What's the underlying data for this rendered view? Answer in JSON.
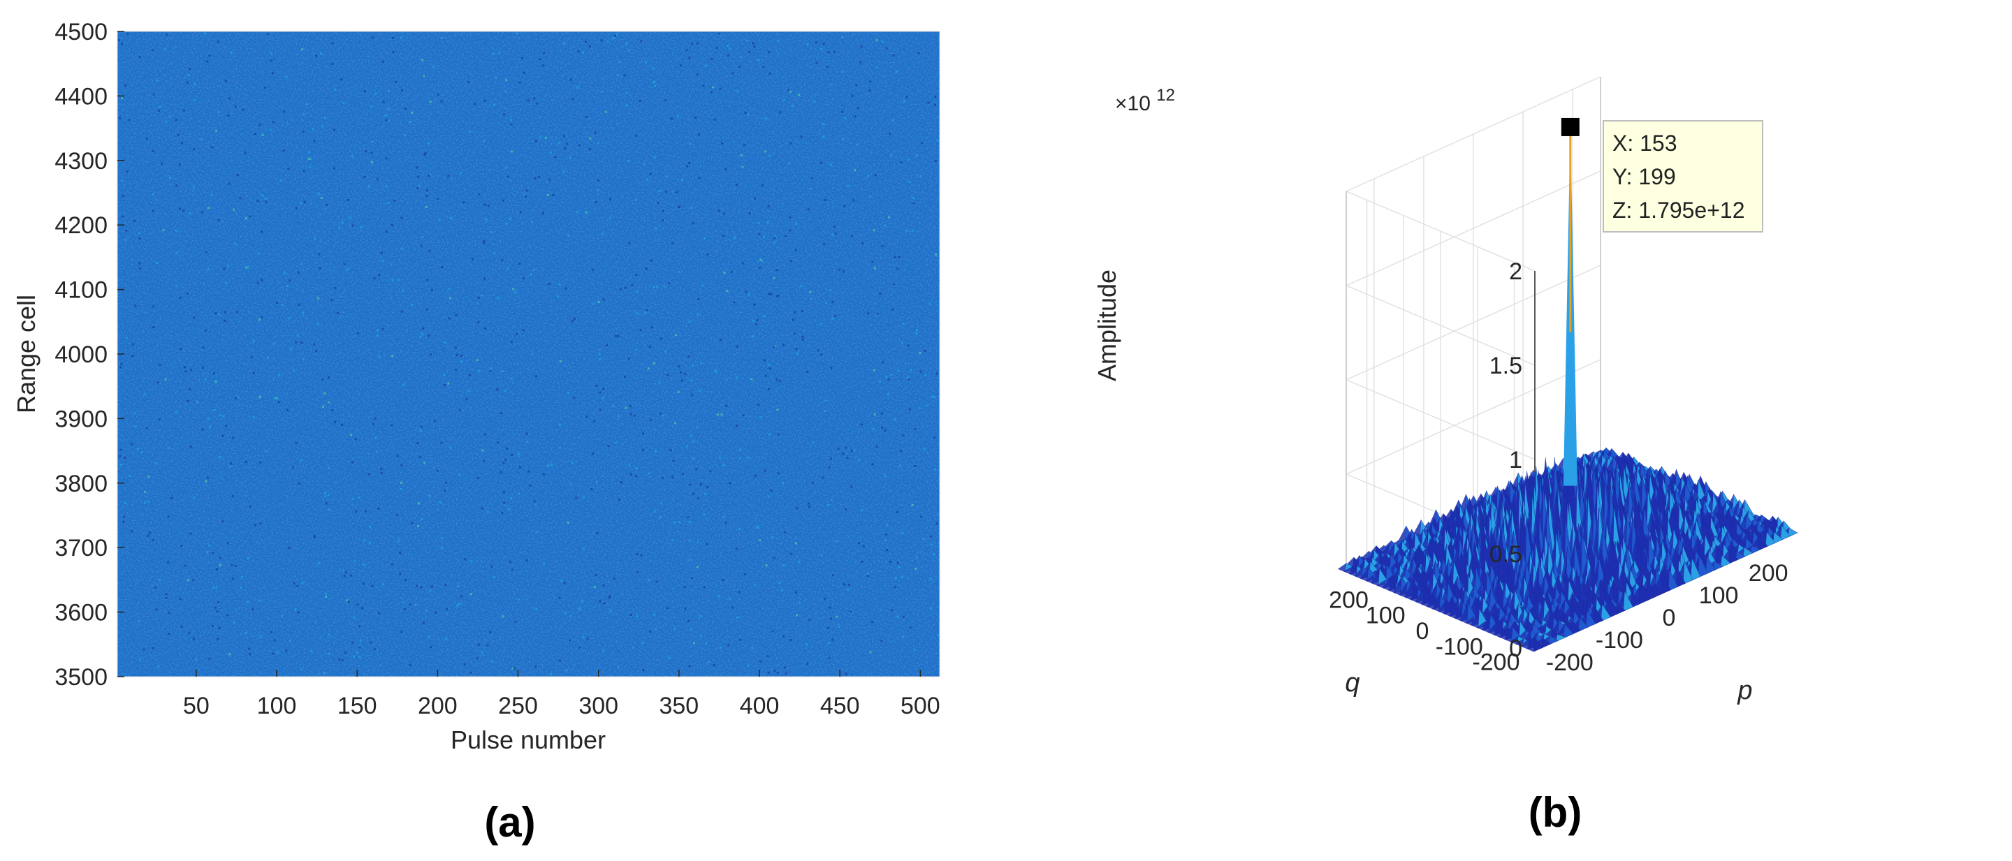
{
  "chart_data": [
    {
      "panel_label": "(a)",
      "type": "heatmap",
      "xlabel": "Pulse number",
      "ylabel": "Range cell",
      "xlim": [
        1,
        512
      ],
      "ylim": [
        3500,
        4500
      ],
      "xticks": [
        50,
        100,
        150,
        200,
        250,
        300,
        350,
        400,
        450,
        500
      ],
      "yticks": [
        3500,
        3600,
        3700,
        3800,
        3900,
        4000,
        4100,
        4200,
        4300,
        4400,
        4500
      ],
      "colormap": "parula",
      "colors": {
        "base": "#1f6fc8",
        "low": "#1a3f9a",
        "mid": "#1fa5d8",
        "high": "#4cc9a0"
      },
      "grid": false
    },
    {
      "panel_label": "(b)",
      "type": "surface",
      "xlabel": "p",
      "ylabel": "q",
      "zlabel": "Amplitude",
      "xlim": [
        -256,
        256
      ],
      "ylim": [
        -256,
        256
      ],
      "zlim": [
        0,
        2000000000000.0
      ],
      "xticks": [
        "-200",
        "-100",
        "0",
        "100",
        "200"
      ],
      "yticks": [
        "-200",
        "-100",
        "0",
        "100",
        "200"
      ],
      "zticks": [
        "0",
        "0.5",
        "1",
        "1.5",
        "2"
      ],
      "z_multiplier": {
        "base": "×10",
        "exponent": "12"
      },
      "peak": {
        "x": 153,
        "y": 199,
        "z": 1795000000000.0
      },
      "datatip": [
        "X: 153",
        "Y: 199",
        "Z: 1.795e+12"
      ],
      "colors": {
        "dark": "#1d2fb0",
        "mid": "#1f5ad0",
        "light": "#2aa0e6",
        "peak": "#e8a020"
      },
      "grid": true
    }
  ]
}
